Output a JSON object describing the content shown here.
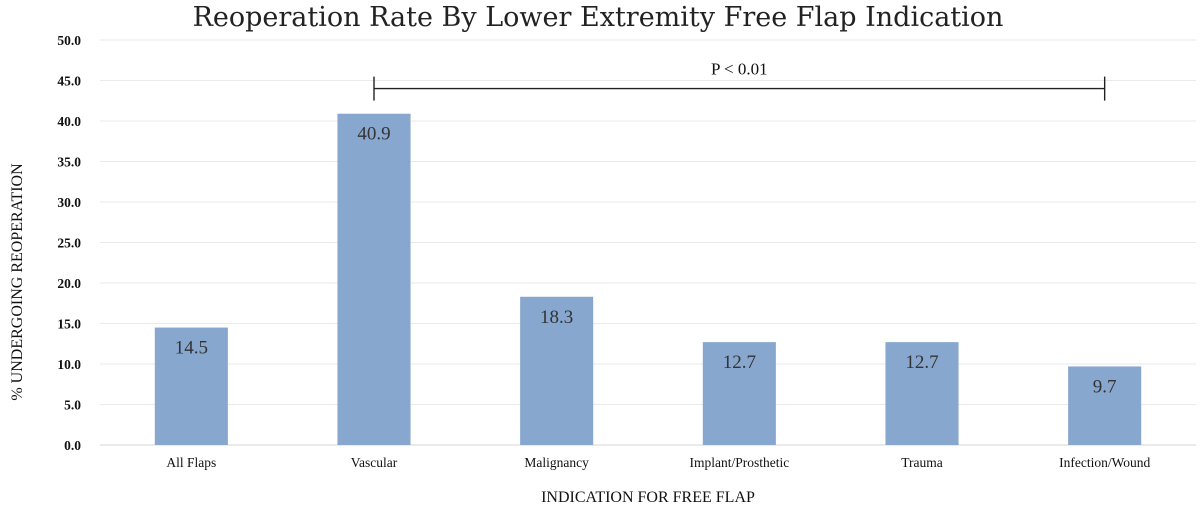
{
  "chart_data": {
    "type": "bar",
    "title": "Reoperation Rate By Lower Extremity Free Flap Indication",
    "xlabel": "INDICATION FOR FREE FLAP",
    "ylabel": "% UNDERGOING REOPERATION",
    "ylim": [
      0,
      50
    ],
    "yticks": [
      "0.0",
      "5.0",
      "10.0",
      "15.0",
      "20.0",
      "25.0",
      "30.0",
      "35.0",
      "40.0",
      "45.0",
      "50.0"
    ],
    "grid": true,
    "categories": [
      "All Flaps",
      "Vascular",
      "Malignancy",
      "Implant/Prosthetic",
      "Trauma",
      "Infection/Wound"
    ],
    "values": [
      14.5,
      40.9,
      18.3,
      12.7,
      12.7,
      9.7
    ],
    "data_labels": [
      "14.5",
      "40.9",
      "18.3",
      "12.7",
      "12.7",
      "9.7"
    ],
    "bar_color": "#87a7cf",
    "annotation": {
      "text": "P < 0.01",
      "from_category": "Vascular",
      "to_category": "Infection/Wound",
      "y": 44.0
    }
  }
}
